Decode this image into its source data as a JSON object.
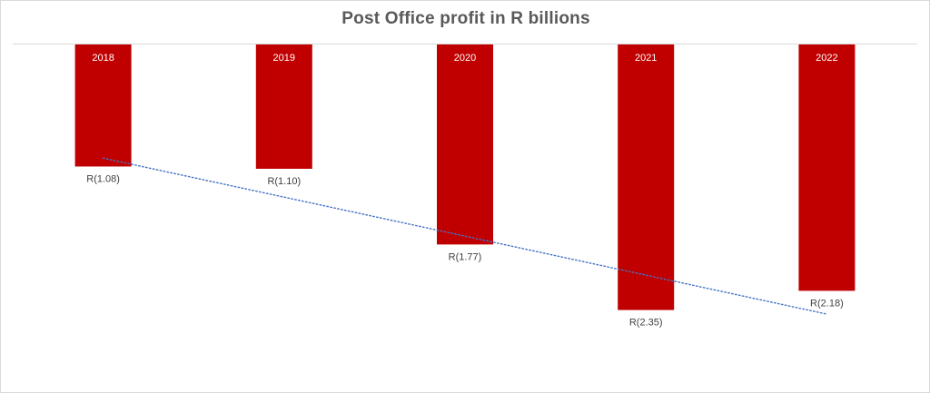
{
  "chart_data": {
    "type": "bar",
    "title": "Post Office profit in R billions",
    "categories": [
      "2018",
      "2019",
      "2020",
      "2021",
      "2022"
    ],
    "values": [
      -1.08,
      -1.1,
      -1.77,
      -2.35,
      -2.18
    ],
    "data_labels": [
      "R(1.08)",
      "R(1.10)",
      "R(1.77)",
      "R(2.35)",
      "R(2.18)"
    ],
    "ylim": [
      -3.1,
      0.05
    ],
    "trendline": {
      "type": "linear",
      "style": "dotted"
    },
    "grid": false,
    "legend": "none",
    "colors": {
      "bar": "#c00000",
      "trendline": "#4472c4",
      "axis": "#d9d9d9",
      "title": "#595959"
    }
  }
}
